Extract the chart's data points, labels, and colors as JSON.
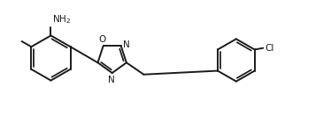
{
  "bg_color": "#ffffff",
  "line_color": "#1a1a1a",
  "lw": 1.4,
  "figsize": [
    3.74,
    1.32
  ],
  "dpi": 100,
  "xlim": [
    0.0,
    10.5
  ],
  "ylim": [
    0.3,
    3.6
  ]
}
